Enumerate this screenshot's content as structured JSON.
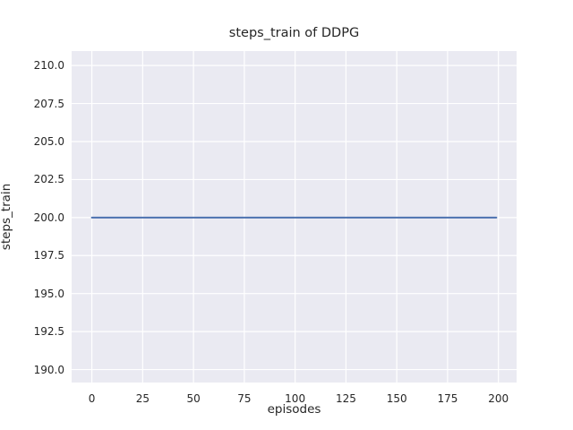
{
  "chart_data": {
    "type": "line",
    "title": "steps_train of DDPG",
    "xlabel": "episodes",
    "ylabel": "steps_train",
    "xlim": [
      -9.95,
      208.95
    ],
    "ylim": [
      189.15,
      210.95
    ],
    "grid": true,
    "legend_position": "none",
    "xticks": {
      "values": [
        0,
        25,
        50,
        75,
        100,
        125,
        150,
        175,
        200
      ],
      "labels": [
        "0",
        "25",
        "50",
        "75",
        "100",
        "125",
        "150",
        "175",
        "200"
      ]
    },
    "yticks": {
      "values": [
        190.0,
        192.5,
        195.0,
        197.5,
        200.0,
        202.5,
        205.0,
        207.5,
        210.0
      ],
      "labels": [
        "190.0",
        "192.5",
        "195.0",
        "197.5",
        "200.0",
        "202.5",
        "205.0",
        "207.5",
        "210.0"
      ]
    },
    "series": [
      {
        "name": "steps_train",
        "color": "#4c72b0",
        "x": [
          0,
          199
        ],
        "y": [
          200,
          200
        ]
      }
    ],
    "colors": {
      "plot_background": "#eaeaf2",
      "grid_line": "#ffffff",
      "text": "#262626",
      "figure_background": "#ffffff"
    }
  }
}
